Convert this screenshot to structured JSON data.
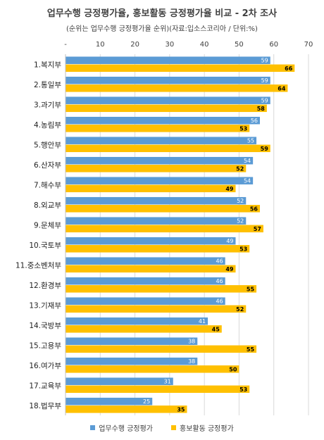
{
  "chart_data": {
    "type": "bar",
    "orientation": "horizontal",
    "title": "업무수행 긍정평가율, 홍보활동 긍정평가율 비교 - 2차 조사",
    "subtitle": "(순위는 업무수행 긍정평가율 순위)(자료:입소스코리아 / 단위:%)",
    "categories": [
      "1.복지부",
      "2.통일부",
      "3.과기부",
      "4.농림부",
      "5.행안부",
      "6.산자부",
      "7.해수부",
      "8.외교부",
      "9.문체부",
      "10.국토부",
      "11.중소벤처부",
      "12.환경부",
      "13.기재부",
      "14.국방부",
      "15.고용부",
      "16.여가부",
      "17.교육부",
      "18.법무부"
    ],
    "series": [
      {
        "name": "업무수행 긍정평가",
        "color": "#5B9BD5",
        "values": [
          59,
          59,
          59,
          56,
          55,
          54,
          54,
          52,
          52,
          49,
          46,
          46,
          46,
          41,
          38,
          38,
          31,
          25
        ]
      },
      {
        "name": "홍보활동 긍정평가",
        "color": "#FFC000",
        "values": [
          66,
          64,
          58,
          53,
          59,
          52,
          49,
          56,
          57,
          53,
          49,
          55,
          52,
          45,
          55,
          50,
          53,
          35
        ]
      }
    ],
    "xlim": [
      0,
      70
    ],
    "xticks": [
      "-",
      "10",
      "20",
      "30",
      "40",
      "50",
      "60",
      "70"
    ],
    "legend_position": "bottom",
    "grid": true
  }
}
